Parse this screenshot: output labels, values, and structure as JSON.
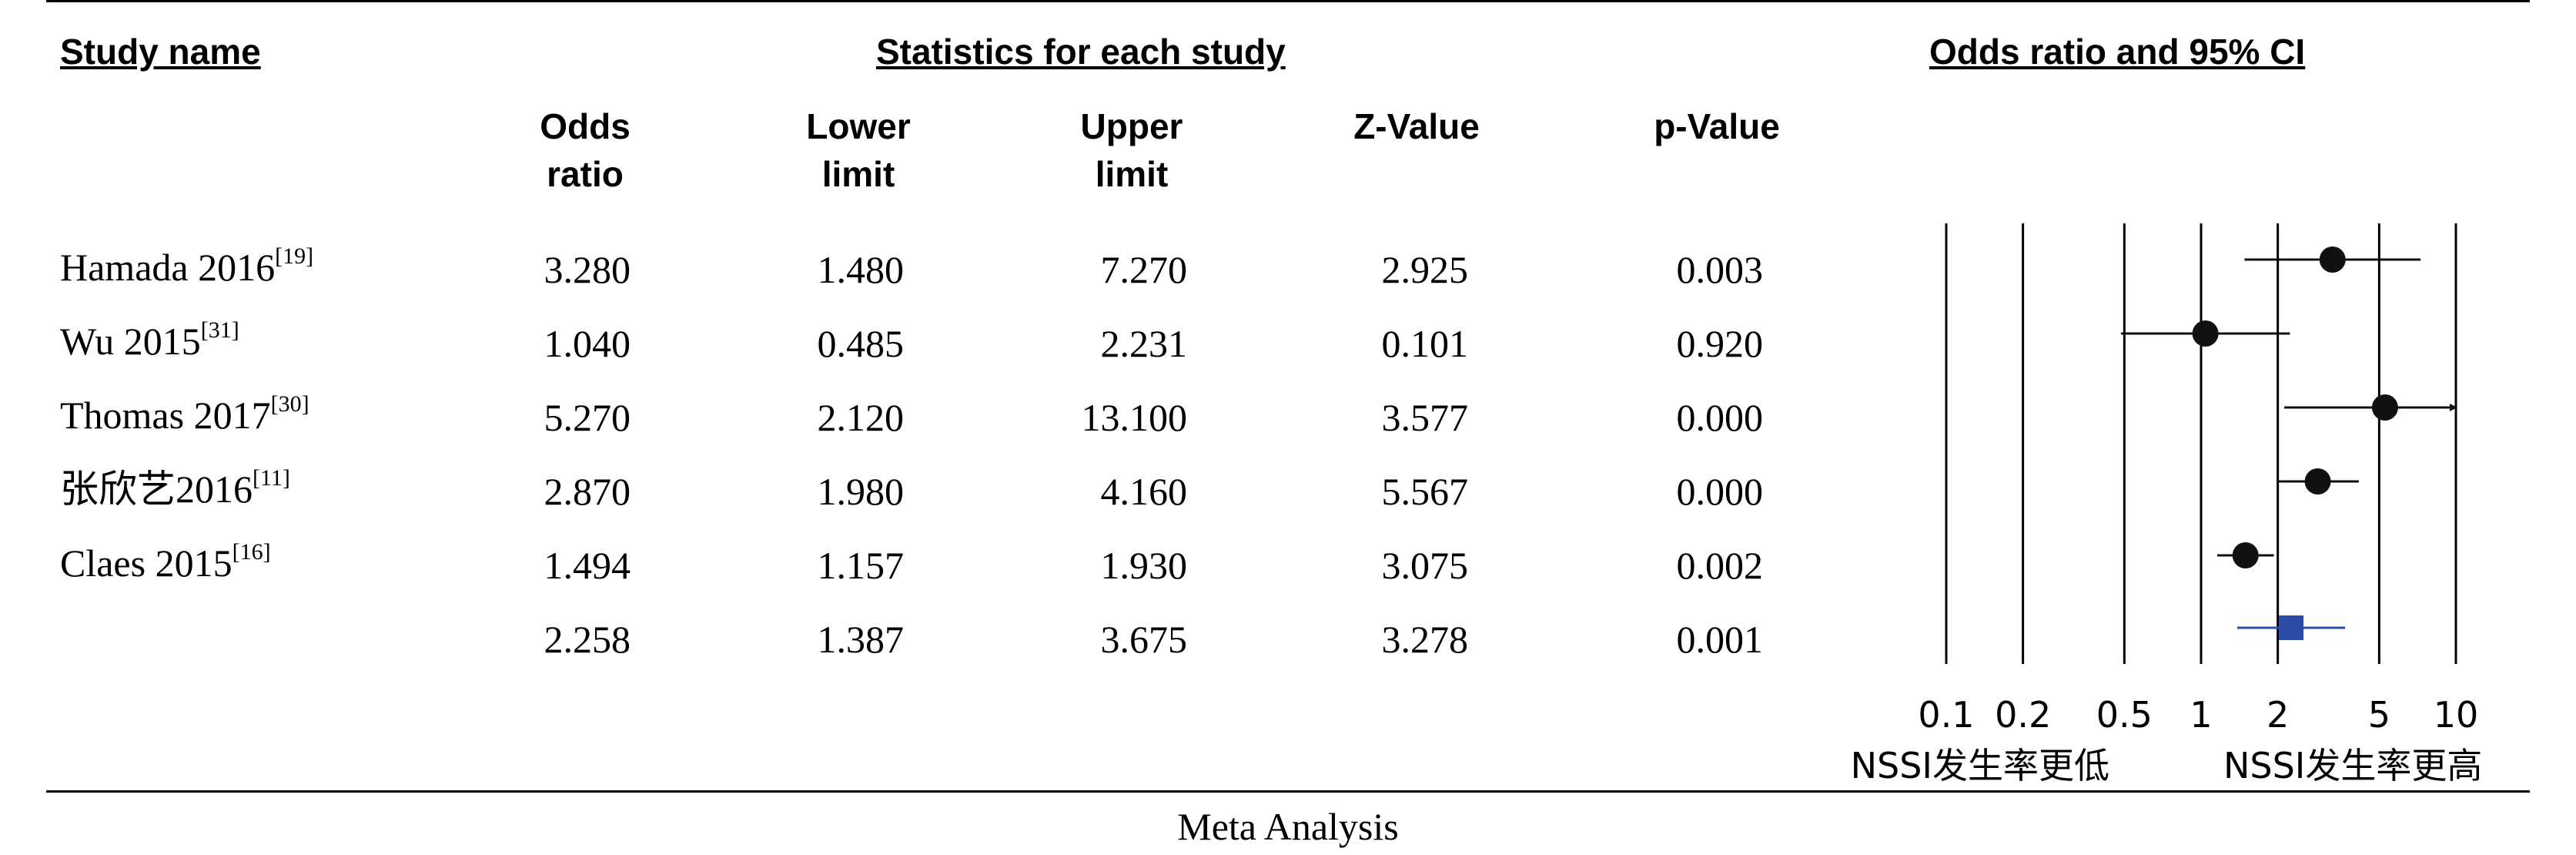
{
  "headers": {
    "study_name": "Study name",
    "statistics": "Statistics for each study",
    "odds_ratio_ci": "Odds ratio and 95% CI"
  },
  "columns": [
    {
      "line1": "Odds",
      "line2": "ratio"
    },
    {
      "line1": "Lower",
      "line2": "limit"
    },
    {
      "line1": "Upper",
      "line2": "limit"
    },
    {
      "line1": "",
      "line2": "Z-Value"
    },
    {
      "line1": "",
      "line2": "p-Value"
    }
  ],
  "rows": [
    {
      "study": "Hamada 2016",
      "ref": "[19]",
      "or": "3.280",
      "lower": "1.480",
      "upper": "7.270",
      "z": "2.925",
      "p": "0.003"
    },
    {
      "study": "Wu 2015",
      "ref": "[31]",
      "or": "1.040",
      "lower": "0.485",
      "upper": "2.231",
      "z": "0.101",
      "p": "0.920"
    },
    {
      "study": "Thomas 2017",
      "ref": "[30]",
      "or": "5.270",
      "lower": "2.120",
      "upper": "13.100",
      "z": "3.577",
      "p": "0.000"
    },
    {
      "study": "张欣艺2016",
      "ref": "[11]",
      "or": "2.870",
      "lower": "1.980",
      "upper": "4.160",
      "z": "5.567",
      "p": "0.000"
    },
    {
      "study": "Claes 2015",
      "ref": "[16]",
      "or": "1.494",
      "lower": "1.157",
      "upper": "1.930",
      "z": "3.075",
      "p": "0.002"
    },
    {
      "study": "",
      "ref": "",
      "or": "2.258",
      "lower": "1.387",
      "upper": "3.675",
      "z": "3.278",
      "p": "0.001"
    }
  ],
  "caption": "Meta Analysis",
  "chart_data": {
    "type": "scatter",
    "title": "Odds ratio and 95% CI",
    "x_scale": "log",
    "x_ticks": [
      0.1,
      0.2,
      0.5,
      1,
      2,
      5,
      10
    ],
    "x_tick_labels": [
      "0.1",
      "0.2",
      "0.5",
      "1",
      "2",
      "5",
      "10"
    ],
    "xlim": [
      0.1,
      10
    ],
    "favours_left": "NSSI发生率更低",
    "favours_right": "NSSI发生率更高",
    "grid": true,
    "points": [
      {
        "or": 3.28,
        "lower": 1.48,
        "upper": 7.27,
        "arrow_right": false,
        "summary": false
      },
      {
        "or": 1.04,
        "lower": 0.485,
        "upper": 2.231,
        "arrow_right": false,
        "summary": false
      },
      {
        "or": 5.27,
        "lower": 2.12,
        "upper": 13.1,
        "arrow_right": true,
        "summary": false
      },
      {
        "or": 2.87,
        "lower": 1.98,
        "upper": 4.16,
        "arrow_right": false,
        "summary": false
      },
      {
        "or": 1.494,
        "lower": 1.157,
        "upper": 1.93,
        "arrow_right": false,
        "summary": false
      },
      {
        "or": 2.258,
        "lower": 1.387,
        "upper": 3.675,
        "arrow_right": false,
        "summary": true
      }
    ],
    "colors": {
      "study": "#111111",
      "summary": "#2b4da8"
    }
  }
}
